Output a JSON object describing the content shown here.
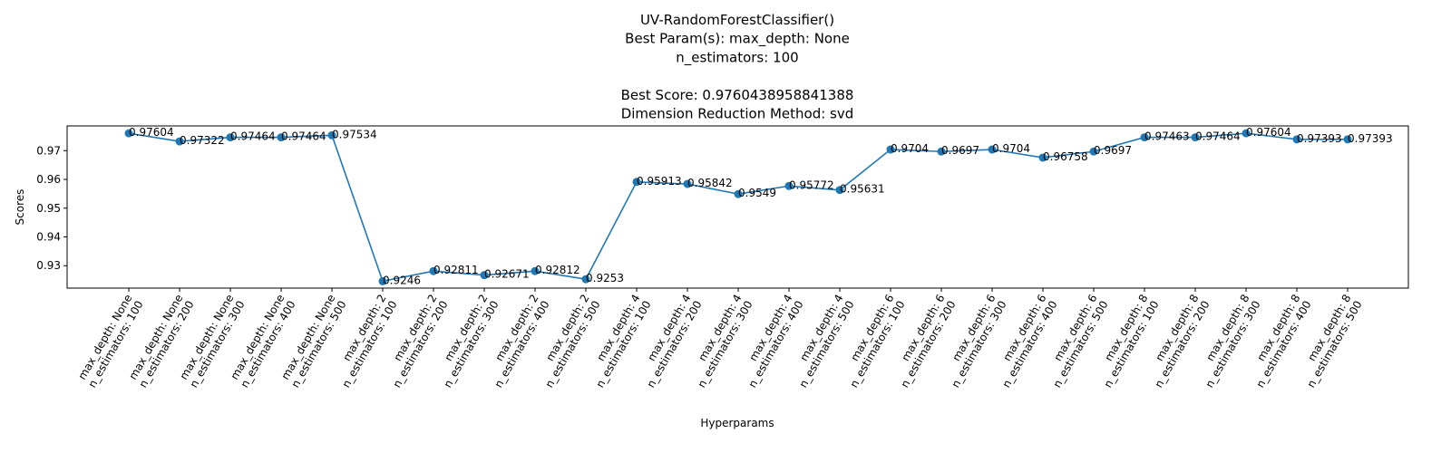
{
  "chart_data": {
    "type": "line",
    "title_lines": [
      "UV-RandomForestClassifier()",
      "Best Param(s): max_depth: None",
      "n_estimators: 100",
      "",
      "Best Score: 0.9760438958841388",
      "Dimension Reduction Method: svd"
    ],
    "xlabel": "Hyperparams",
    "ylabel": "Scores",
    "ylim": [
      0.9222,
      0.9786
    ],
    "yticks": [
      "0.93",
      "0.94",
      "0.95",
      "0.96",
      "0.97"
    ],
    "grid": false,
    "legend": "none",
    "line_color": "#1f77b4",
    "categories": [
      [
        "max_depth: None",
        "n_estimators: 100"
      ],
      [
        "max_depth: None",
        "n_estimators: 200"
      ],
      [
        "max_depth: None",
        "n_estimators: 300"
      ],
      [
        "max_depth: None",
        "n_estimators: 400"
      ],
      [
        "max_depth: None",
        "n_estimators: 500"
      ],
      [
        "max_depth: 2",
        "n_estimators: 100"
      ],
      [
        "max_depth: 2",
        "n_estimators: 200"
      ],
      [
        "max_depth: 2",
        "n_estimators: 300"
      ],
      [
        "max_depth: 2",
        "n_estimators: 400"
      ],
      [
        "max_depth: 2",
        "n_estimators: 500"
      ],
      [
        "max_depth: 4",
        "n_estimators: 100"
      ],
      [
        "max_depth: 4",
        "n_estimators: 200"
      ],
      [
        "max_depth: 4",
        "n_estimators: 300"
      ],
      [
        "max_depth: 4",
        "n_estimators: 400"
      ],
      [
        "max_depth: 4",
        "n_estimators: 500"
      ],
      [
        "max_depth: 6",
        "n_estimators: 100"
      ],
      [
        "max_depth: 6",
        "n_estimators: 200"
      ],
      [
        "max_depth: 6",
        "n_estimators: 300"
      ],
      [
        "max_depth: 6",
        "n_estimators: 400"
      ],
      [
        "max_depth: 6",
        "n_estimators: 500"
      ],
      [
        "max_depth: 8",
        "n_estimators: 100"
      ],
      [
        "max_depth: 8",
        "n_estimators: 200"
      ],
      [
        "max_depth: 8",
        "n_estimators: 300"
      ],
      [
        "max_depth: 8",
        "n_estimators: 400"
      ],
      [
        "max_depth: 8",
        "n_estimators: 500"
      ]
    ],
    "values": [
      0.97604,
      0.97322,
      0.97464,
      0.97464,
      0.97534,
      0.9246,
      0.92811,
      0.92671,
      0.92812,
      0.9253,
      0.95913,
      0.95842,
      0.9549,
      0.95772,
      0.95631,
      0.9704,
      0.9697,
      0.9704,
      0.96758,
      0.9697,
      0.97463,
      0.97464,
      0.97604,
      0.97393,
      0.97393
    ],
    "labels": [
      "0.97604",
      "0.97322",
      "0.97464",
      "0.97464",
      "0.97534",
      "0.9246",
      "0.92811",
      "0.92671",
      "0.92812",
      "0.9253",
      "0.95913",
      "0.95842",
      "0.9549",
      "0.95772",
      "0.95631",
      "0.9704",
      "0.9697",
      "0.9704",
      "0.96758",
      "0.9697",
      "0.97463",
      "0.97464",
      "0.97604",
      "0.97393",
      "0.97393"
    ]
  }
}
